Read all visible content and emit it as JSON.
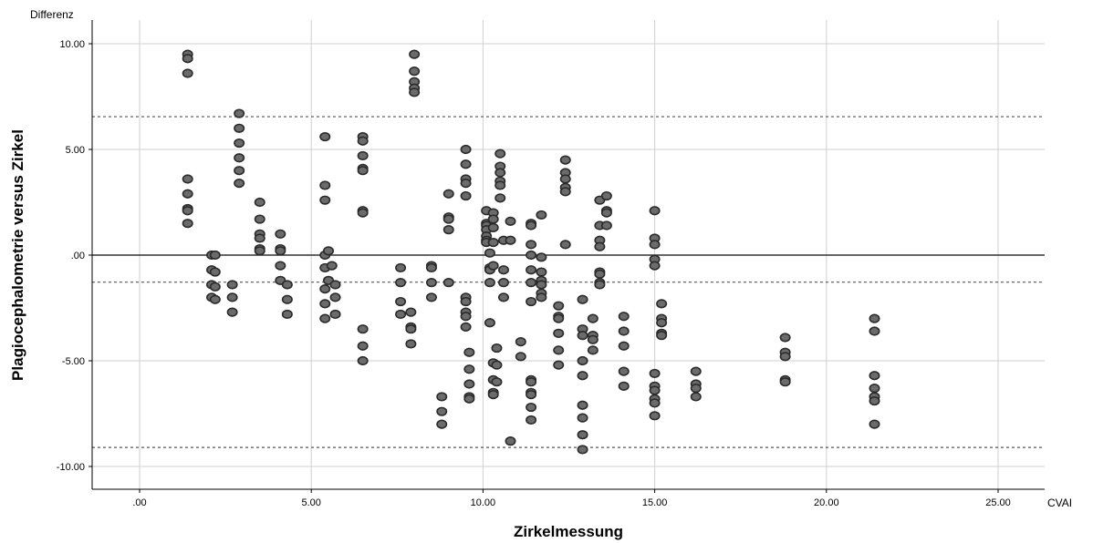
{
  "chart_data": {
    "type": "scatter",
    "title": "",
    "xlabel": "Zirkelmessung",
    "ylabel": "Plagiocephalometrie versus Zirkel",
    "x_unit_label": "CVAI",
    "y_unit_label": "Differenz",
    "xlim": [
      -1.3,
      26.7
    ],
    "ylim": [
      -11.0,
      11.0
    ],
    "x_ticks": [
      0,
      5,
      10,
      15,
      20,
      25
    ],
    "x_tick_labels": [
      ".00",
      "5.00",
      "10.00",
      "15.00",
      "20.00",
      "25.00"
    ],
    "y_ticks": [
      10,
      5,
      0,
      -5,
      -10
    ],
    "y_tick_labels": [
      "10.00",
      "5.00",
      ".00",
      "-5.00",
      "-10.00"
    ],
    "grid": true,
    "reference_lines": [
      {
        "y": 6.55,
        "style": "dotted"
      },
      {
        "y": 0.0,
        "style": "solid"
      },
      {
        "y": -1.28,
        "style": "dotted"
      },
      {
        "y": -9.1,
        "style": "dotted"
      }
    ],
    "colors": {
      "marker_fill": "#6b6b6b",
      "marker_edge": "#2a2a2a",
      "grid": "#cfcfcf",
      "reference_line": "#555555"
    },
    "series": [
      {
        "points": [
          [
            1.4,
            9.5
          ],
          [
            1.4,
            9.3
          ],
          [
            1.4,
            8.6
          ],
          [
            1.4,
            3.6
          ],
          [
            1.4,
            2.9
          ],
          [
            1.4,
            2.2
          ],
          [
            1.4,
            2.1
          ],
          [
            1.4,
            1.5
          ],
          [
            2.1,
            0.0
          ],
          [
            2.2,
            0.0
          ],
          [
            2.1,
            -0.7
          ],
          [
            2.2,
            -0.8
          ],
          [
            2.1,
            -1.4
          ],
          [
            2.2,
            -1.5
          ],
          [
            2.1,
            -2.0
          ],
          [
            2.2,
            -2.1
          ],
          [
            2.7,
            -1.4
          ],
          [
            2.7,
            -2.0
          ],
          [
            2.7,
            -2.7
          ],
          [
            2.9,
            6.7
          ],
          [
            2.9,
            6.0
          ],
          [
            2.9,
            5.3
          ],
          [
            2.9,
            4.6
          ],
          [
            2.9,
            4.0
          ],
          [
            2.9,
            3.4
          ],
          [
            3.5,
            2.5
          ],
          [
            3.5,
            1.7
          ],
          [
            3.5,
            1.0
          ],
          [
            3.5,
            0.8
          ],
          [
            3.5,
            0.3
          ],
          [
            3.5,
            0.2
          ],
          [
            4.1,
            1.0
          ],
          [
            4.1,
            0.3
          ],
          [
            4.1,
            0.2
          ],
          [
            4.1,
            -0.5
          ],
          [
            4.1,
            -1.2
          ],
          [
            4.3,
            -1.4
          ],
          [
            4.3,
            -2.1
          ],
          [
            4.3,
            -2.8
          ],
          [
            5.4,
            5.6
          ],
          [
            5.4,
            3.3
          ],
          [
            5.4,
            2.6
          ],
          [
            5.4,
            0.0
          ],
          [
            5.4,
            -0.6
          ],
          [
            5.4,
            -1.6
          ],
          [
            5.4,
            -2.3
          ],
          [
            5.4,
            -3.0
          ],
          [
            5.5,
            0.2
          ],
          [
            5.6,
            -0.5
          ],
          [
            5.5,
            -1.2
          ],
          [
            5.7,
            -1.4
          ],
          [
            5.7,
            -2.0
          ],
          [
            5.7,
            -2.8
          ],
          [
            6.5,
            5.6
          ],
          [
            6.5,
            5.4
          ],
          [
            6.5,
            4.7
          ],
          [
            6.5,
            4.1
          ],
          [
            6.5,
            4.0
          ],
          [
            6.5,
            2.1
          ],
          [
            6.5,
            2.0
          ],
          [
            6.5,
            -3.5
          ],
          [
            6.5,
            -4.3
          ],
          [
            6.5,
            -5.0
          ],
          [
            7.6,
            -0.6
          ],
          [
            7.6,
            -1.3
          ],
          [
            7.6,
            -2.2
          ],
          [
            7.6,
            -2.8
          ],
          [
            7.9,
            -2.7
          ],
          [
            7.9,
            -3.4
          ],
          [
            7.9,
            -3.5
          ],
          [
            7.9,
            -4.2
          ],
          [
            8.0,
            9.5
          ],
          [
            8.0,
            8.7
          ],
          [
            8.0,
            8.2
          ],
          [
            8.0,
            7.9
          ],
          [
            8.0,
            7.7
          ],
          [
            8.5,
            -0.5
          ],
          [
            8.5,
            -0.6
          ],
          [
            8.5,
            -1.3
          ],
          [
            8.5,
            -2.0
          ],
          [
            8.8,
            -6.7
          ],
          [
            8.8,
            -7.4
          ],
          [
            8.8,
            -8.0
          ],
          [
            9.0,
            2.9
          ],
          [
            9.0,
            1.8
          ],
          [
            9.0,
            1.7
          ],
          [
            9.0,
            1.2
          ],
          [
            9.0,
            -1.3
          ],
          [
            9.5,
            5.0
          ],
          [
            9.5,
            4.3
          ],
          [
            9.5,
            3.6
          ],
          [
            9.5,
            3.4
          ],
          [
            9.5,
            2.8
          ],
          [
            9.5,
            -2.0
          ],
          [
            9.5,
            -2.2
          ],
          [
            9.5,
            -2.7
          ],
          [
            9.5,
            -2.9
          ],
          [
            9.5,
            -3.4
          ],
          [
            9.6,
            -4.6
          ],
          [
            9.6,
            -5.4
          ],
          [
            9.6,
            -6.1
          ],
          [
            9.6,
            -6.7
          ],
          [
            9.6,
            -6.8
          ],
          [
            10.1,
            2.1
          ],
          [
            10.1,
            1.5
          ],
          [
            10.1,
            1.4
          ],
          [
            10.1,
            1.2
          ],
          [
            10.1,
            0.9
          ],
          [
            10.1,
            0.7
          ],
          [
            10.1,
            0.6
          ],
          [
            10.2,
            0.1
          ],
          [
            10.2,
            -0.6
          ],
          [
            10.2,
            -0.7
          ],
          [
            10.2,
            -1.3
          ],
          [
            10.2,
            -3.2
          ],
          [
            10.3,
            2.0
          ],
          [
            10.3,
            1.7
          ],
          [
            10.3,
            1.3
          ],
          [
            10.3,
            0.6
          ],
          [
            10.3,
            -0.5
          ],
          [
            10.4,
            -4.4
          ],
          [
            10.3,
            -5.1
          ],
          [
            10.4,
            -5.2
          ],
          [
            10.3,
            -5.9
          ],
          [
            10.4,
            -6.0
          ],
          [
            10.3,
            -6.5
          ],
          [
            10.3,
            -6.6
          ],
          [
            10.5,
            4.8
          ],
          [
            10.5,
            4.2
          ],
          [
            10.5,
            3.9
          ],
          [
            10.5,
            3.5
          ],
          [
            10.5,
            3.3
          ],
          [
            10.5,
            2.7
          ],
          [
            10.6,
            0.7
          ],
          [
            10.6,
            -0.7
          ],
          [
            10.6,
            -1.3
          ],
          [
            10.6,
            -2.0
          ],
          [
            10.8,
            1.6
          ],
          [
            10.8,
            0.7
          ],
          [
            10.8,
            -8.8
          ],
          [
            11.1,
            -4.1
          ],
          [
            11.1,
            -4.8
          ],
          [
            11.4,
            1.5
          ],
          [
            11.4,
            1.4
          ],
          [
            11.4,
            0.5
          ],
          [
            11.4,
            0.0
          ],
          [
            11.4,
            -0.7
          ],
          [
            11.4,
            -1.3
          ],
          [
            11.4,
            -2.2
          ],
          [
            11.4,
            -5.9
          ],
          [
            11.4,
            -6.0
          ],
          [
            11.4,
            -6.5
          ],
          [
            11.4,
            -6.6
          ],
          [
            11.4,
            -7.2
          ],
          [
            11.4,
            -7.8
          ],
          [
            11.7,
            1.9
          ],
          [
            11.7,
            -0.1
          ],
          [
            11.7,
            -0.8
          ],
          [
            11.7,
            -1.2
          ],
          [
            11.7,
            -1.4
          ],
          [
            11.7,
            -1.8
          ],
          [
            11.7,
            -2.0
          ],
          [
            12.4,
            4.5
          ],
          [
            12.4,
            3.9
          ],
          [
            12.4,
            3.6
          ],
          [
            12.4,
            3.2
          ],
          [
            12.4,
            3.0
          ],
          [
            12.4,
            0.5
          ],
          [
            12.2,
            -2.4
          ],
          [
            12.2,
            -2.9
          ],
          [
            12.2,
            -3.0
          ],
          [
            12.2,
            -3.7
          ],
          [
            12.2,
            -4.5
          ],
          [
            12.2,
            -5.2
          ],
          [
            12.9,
            -2.1
          ],
          [
            12.9,
            -3.5
          ],
          [
            12.9,
            -3.8
          ],
          [
            12.9,
            -5.0
          ],
          [
            12.9,
            -5.7
          ],
          [
            12.9,
            -7.1
          ],
          [
            12.9,
            -7.7
          ],
          [
            12.9,
            -8.5
          ],
          [
            12.9,
            -9.2
          ],
          [
            13.2,
            -3.0
          ],
          [
            13.2,
            -3.8
          ],
          [
            13.2,
            -4.0
          ],
          [
            13.2,
            -4.5
          ],
          [
            13.4,
            2.6
          ],
          [
            13.4,
            1.4
          ],
          [
            13.4,
            0.7
          ],
          [
            13.4,
            0.4
          ],
          [
            13.4,
            -0.8
          ],
          [
            13.4,
            -0.9
          ],
          [
            13.4,
            -1.3
          ],
          [
            13.4,
            -1.4
          ],
          [
            13.6,
            2.8
          ],
          [
            13.6,
            2.1
          ],
          [
            13.6,
            2.0
          ],
          [
            13.6,
            1.4
          ],
          [
            14.1,
            -2.9
          ],
          [
            14.1,
            -3.6
          ],
          [
            14.1,
            -4.3
          ],
          [
            14.1,
            -5.5
          ],
          [
            14.1,
            -6.2
          ],
          [
            15.0,
            2.1
          ],
          [
            15.0,
            0.8
          ],
          [
            15.0,
            0.5
          ],
          [
            15.0,
            -0.2
          ],
          [
            15.0,
            -0.5
          ],
          [
            15.0,
            -5.6
          ],
          [
            15.0,
            -6.2
          ],
          [
            15.0,
            -6.4
          ],
          [
            15.0,
            -6.8
          ],
          [
            15.0,
            -7.0
          ],
          [
            15.0,
            -7.6
          ],
          [
            15.2,
            -2.3
          ],
          [
            15.2,
            -3.0
          ],
          [
            15.2,
            -3.2
          ],
          [
            15.2,
            -3.7
          ],
          [
            15.2,
            -3.8
          ],
          [
            16.2,
            -5.5
          ],
          [
            16.2,
            -6.1
          ],
          [
            16.2,
            -6.3
          ],
          [
            16.2,
            -6.7
          ],
          [
            18.8,
            -3.9
          ],
          [
            18.8,
            -4.6
          ],
          [
            18.8,
            -4.8
          ],
          [
            18.8,
            -5.9
          ],
          [
            18.8,
            -6.0
          ],
          [
            21.4,
            -3.0
          ],
          [
            21.4,
            -3.6
          ],
          [
            21.4,
            -5.7
          ],
          [
            21.4,
            -6.3
          ],
          [
            21.4,
            -6.7
          ],
          [
            21.4,
            -6.9
          ],
          [
            21.4,
            -8.0
          ]
        ]
      }
    ]
  }
}
